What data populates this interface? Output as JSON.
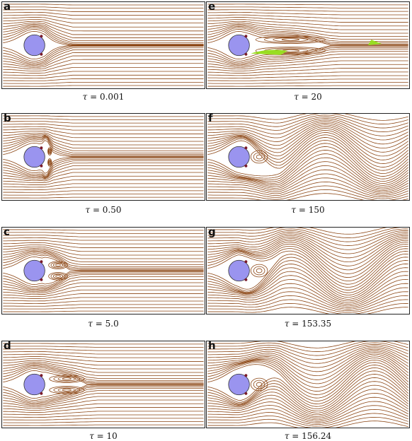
{
  "figure": {
    "line_color": "#8b4513",
    "cylinder_color": "#9a94ef",
    "separation_zone_color": "#99dd22",
    "panels": [
      {
        "id": "a",
        "label": "a",
        "tau_symbol": "τ",
        "tau_value": "= 0.001",
        "wake": "none"
      },
      {
        "id": "b",
        "label": "b",
        "tau_symbol": "τ",
        "tau_value": "= 0.50",
        "wake": "tiny"
      },
      {
        "id": "c",
        "label": "c",
        "tau_symbol": "τ",
        "tau_value": "= 5.0",
        "wake": "symmetric-small"
      },
      {
        "id": "d",
        "label": "d",
        "tau_symbol": "τ",
        "tau_value": "= 10",
        "wake": "symmetric-medium"
      },
      {
        "id": "e",
        "label": "e",
        "tau_symbol": "τ",
        "tau_value": "= 20",
        "wake": "symmetric-large"
      },
      {
        "id": "f",
        "label": "f",
        "tau_symbol": "τ",
        "tau_value": "= 150",
        "wake": "oscillating"
      },
      {
        "id": "g",
        "label": "g",
        "tau_symbol": "τ",
        "tau_value": "= 153.35",
        "wake": "oscillating"
      },
      {
        "id": "h",
        "label": "h",
        "tau_symbol": "τ",
        "tau_value": "= 156.24",
        "wake": "oscillating"
      }
    ]
  }
}
